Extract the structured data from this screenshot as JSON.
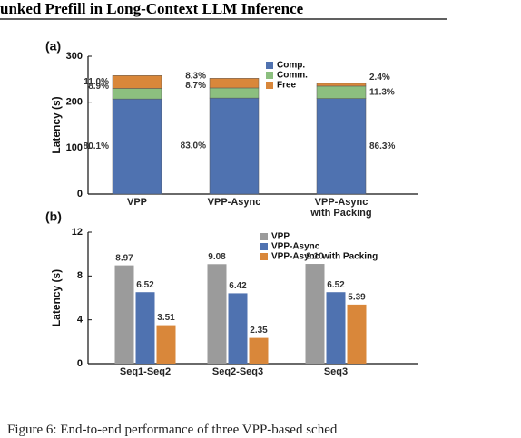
{
  "header": {
    "title": "unked Prefill in Long-Context LLM Inference"
  },
  "chart_data": [
    {
      "type": "stacked_bar",
      "panel": "(a)",
      "ylabel": "Latency (s)",
      "categories": [
        "VPP",
        "VPP-Async",
        "VPP-Async with Packing"
      ],
      "series": [
        {
          "name": "Comp.",
          "color": "#4f72b0",
          "values": [
            207,
            209,
            208
          ],
          "share_labels": [
            "80.1%",
            "83.0%",
            "86.3%"
          ]
        },
        {
          "name": "Comm.",
          "color": "#8cbf7f",
          "values": [
            23,
            22,
            27
          ],
          "share_labels": [
            "8.9%",
            "8.7%",
            "11.3%"
          ]
        },
        {
          "name": "Free",
          "color": "#d9873a",
          "values": [
            28,
            21,
            6
          ],
          "share_labels": [
            "11.0%",
            "8.3%",
            "2.4%"
          ]
        }
      ],
      "ylim": [
        0,
        300
      ],
      "yticks": [
        0,
        100,
        200,
        300
      ],
      "legend": "top-right"
    },
    {
      "type": "bar",
      "panel": "(b)",
      "ylabel": "Latency (s)",
      "categories": [
        "Seq1-Seq2",
        "Seq2-Seq3",
        "Seq3"
      ],
      "series": [
        {
          "name": "VPP",
          "color": "#9b9b9b",
          "values": [
            8.97,
            9.08,
            9.1
          ],
          "value_labels": [
            "8.97",
            "9.08",
            "9.10"
          ]
        },
        {
          "name": "VPP-Async",
          "color": "#4f72b0",
          "values": [
            6.52,
            6.42,
            6.52
          ]
        },
        {
          "name": "VPP-Async with Packing",
          "color": "#d9873a",
          "values": [
            3.51,
            2.35,
            5.39
          ]
        }
      ],
      "ylim": [
        0,
        12
      ],
      "yticks": [
        0,
        4,
        8,
        12
      ],
      "legend": "top-right"
    }
  ],
  "caption": "Figure 6: End-to-end performance of three VPP-based sched"
}
